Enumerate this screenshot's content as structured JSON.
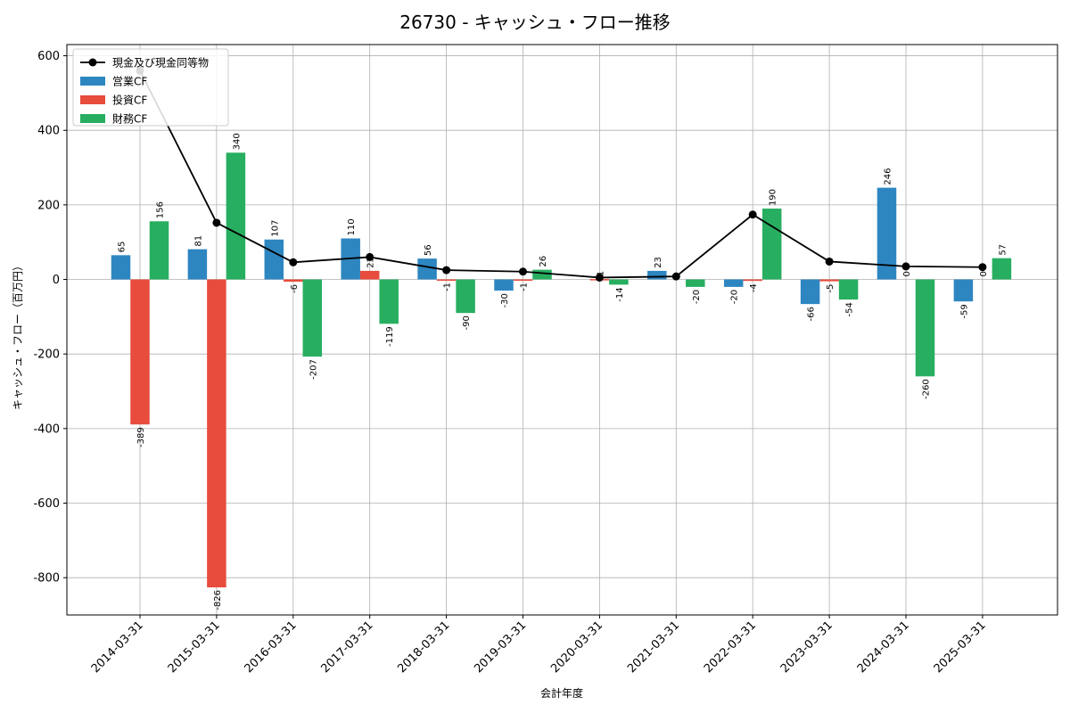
{
  "chart_data": {
    "type": "bar",
    "title": "26730 - キャッシュ・フロー推移",
    "xlabel": "会計年度",
    "ylabel": "キャッシュ・フロー（百万円）",
    "ylim": [
      -900,
      630
    ],
    "yticks": [
      -800,
      -600,
      -400,
      -200,
      0,
      200,
      400,
      600
    ],
    "grid": true,
    "legend_position": "top-left",
    "categories": [
      "2014-03-31",
      "2015-03-31",
      "2016-03-31",
      "2017-03-31",
      "2018-03-31",
      "2019-03-31",
      "2020-03-31",
      "2021-03-31",
      "2022-03-31",
      "2023-03-31",
      "2024-03-31",
      "2025-03-31"
    ],
    "series": [
      {
        "name": "営業CF",
        "type": "bar",
        "color": "#2e86c1",
        "values": [
          65,
          81,
          107,
          110,
          56,
          -30,
          0,
          23,
          -20,
          -66,
          246,
          -59
        ],
        "labels": [
          "65",
          "81",
          "107",
          "110",
          "56",
          "-30",
          "",
          "23",
          "-20",
          "-66",
          "246",
          "-59"
        ]
      },
      {
        "name": "投資CF",
        "type": "bar",
        "color": "#e74c3c",
        "values": [
          -389,
          -826,
          -6,
          23,
          -1,
          -1,
          1,
          0,
          -4,
          -5,
          0,
          0
        ],
        "labels": [
          "-389",
          "-826",
          "-6",
          "23",
          "-1",
          "-1",
          "1",
          "",
          "-4",
          "-5",
          "0",
          "0"
        ]
      },
      {
        "name": "財務CF",
        "type": "bar",
        "color": "#27ae60",
        "values": [
          156,
          340,
          -207,
          -119,
          -90,
          26,
          -14,
          -20,
          190,
          -54,
          -260,
          57
        ],
        "labels": [
          "156",
          "340",
          "-207",
          "-119",
          "-90",
          "26",
          "-14",
          "-20",
          "190",
          "-54",
          "-260",
          "57"
        ]
      },
      {
        "name": "現金及び現金同等物",
        "type": "line",
        "color": "#000000",
        "values": [
          560,
          152,
          46,
          60,
          25,
          21,
          5,
          8,
          174,
          48,
          35,
          33
        ]
      }
    ]
  }
}
